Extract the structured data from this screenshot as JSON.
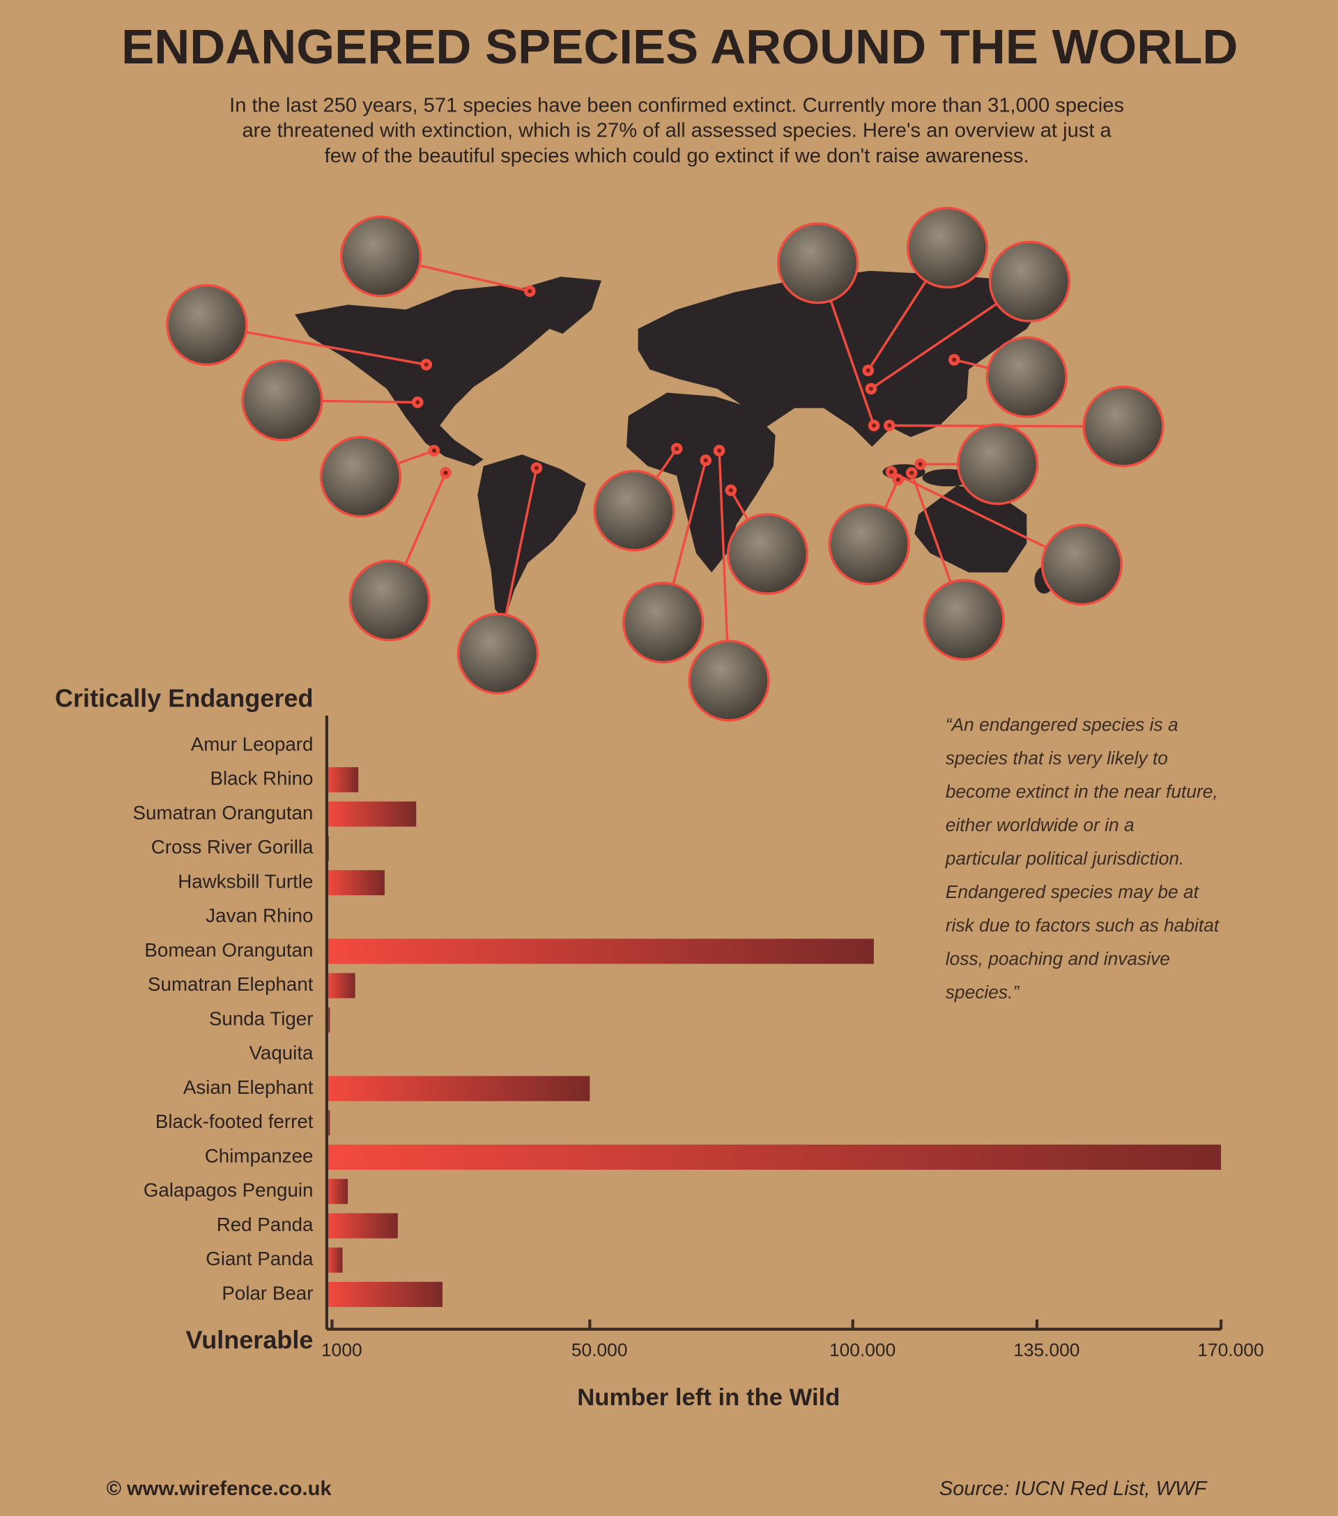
{
  "header": {
    "title": "ENDANGERED SPECIES AROUND THE WORLD",
    "subtitle": [
      "In the last 250 years, 571 species have been confirmed extinct. Currently more than 31,000 species",
      "are threatened with extinction, which is 27% of all assessed species. Here's an overview at just a",
      "few of the beautiful species which could go extinct if we don't raise awareness."
    ]
  },
  "chart_data": {
    "type": "bar",
    "orientation": "horizontal",
    "top_label": "Critically Endangered",
    "bottom_label": "Vulnerable",
    "categories": [
      "Amur Leopard",
      "Black Rhino",
      "Sumatran Orangutan",
      "Cross River Gorilla",
      "Hawksbill Turtle",
      "Javan Rhino",
      "Bomean Orangutan",
      "Sumatran Elephant",
      "Sunda Tiger",
      "Vaquita",
      "Asian Elephant",
      "Black-footed ferret",
      "Chimpanzee",
      "Galapagos Penguin",
      "Red Panda",
      "Giant Panda",
      "Polar Bear"
    ],
    "values": [
      100,
      6000,
      17000,
      400,
      11000,
      100,
      104000,
      5400,
      600,
      150,
      50000,
      600,
      170000,
      4000,
      13500,
      3000,
      22000
    ],
    "colors": [
      "#f44a3e",
      "#7a2a28"
    ],
    "xlim": [
      0,
      170000
    ],
    "xticks": [
      1000,
      {
        "value": 50000,
        "label": "50.000"
      },
      {
        "value": 100000,
        "label": "100.000"
      },
      {
        "value": 135000,
        "label": "135.000"
      },
      {
        "value": 170000,
        "label": "170.000"
      }
    ],
    "xlabel": "Number left in the Wild"
  },
  "quote": [
    "“An endangered species is a",
    "species that is very likely to",
    "become extinct in the near future,",
    "either worldwide or in a",
    "particular political jurisdiction.",
    "Endangered species may be at",
    "risk due to factors such as habitat",
    "loss, poaching and invasive",
    "species.”"
  ],
  "footer": {
    "credit": "© www.wirefence.co.uk",
    "source": "Source: IUCN Red List, WWF"
  }
}
